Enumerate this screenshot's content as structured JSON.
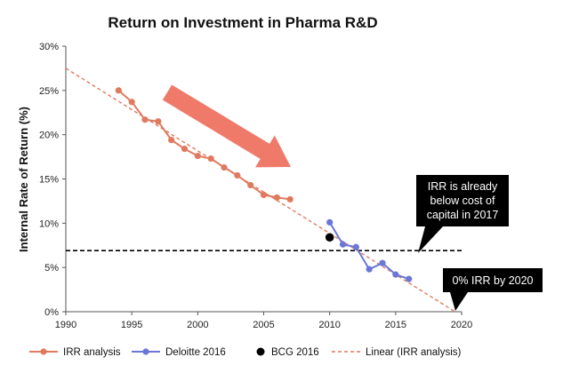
{
  "chart_data": {
    "type": "line",
    "title": "Return on Investment in Pharma R&D",
    "ylabel": "Internal Rate of Return (%)",
    "xlabel": "",
    "xlim": [
      1990,
      2020
    ],
    "ylim": [
      0,
      30
    ],
    "x_ticks": [
      1990,
      1995,
      2000,
      2005,
      2010,
      2015,
      2020
    ],
    "x_tick_labels": [
      "1990",
      "1995",
      "2000",
      "2005",
      "2010",
      "2015",
      "2020"
    ],
    "y_ticks": [
      0,
      5,
      10,
      15,
      20,
      25,
      30
    ],
    "y_tick_labels": [
      "0%",
      "5%",
      "10%",
      "15%",
      "20%",
      "25%",
      "30%"
    ],
    "series": [
      {
        "name": "IRR analysis",
        "kind": "line-marker",
        "color": "#e07a5f",
        "x": [
          1994,
          1995,
          1996,
          1997,
          1998,
          1999,
          2000,
          2001,
          2002,
          2003,
          2004,
          2005,
          2006,
          2007
        ],
        "y": [
          25.0,
          23.7,
          21.7,
          21.5,
          19.4,
          18.4,
          17.6,
          17.3,
          16.3,
          15.4,
          14.3,
          13.2,
          12.9,
          12.7
        ]
      },
      {
        "name": "Deloitte 2016",
        "kind": "line-marker",
        "color": "#6a76d8",
        "x": [
          2010,
          2011,
          2012,
          2013,
          2014,
          2015,
          2016
        ],
        "y": [
          10.1,
          7.6,
          7.3,
          4.8,
          5.5,
          4.2,
          3.7
        ]
      },
      {
        "name": "BCG 2016",
        "kind": "point",
        "color": "#000000",
        "x": [
          2010
        ],
        "y": [
          8.4
        ]
      },
      {
        "name": "Linear (IRR analysis)",
        "kind": "dashed-trendline",
        "color": "#e07a5f",
        "x": [
          1990,
          2019.5
        ],
        "y": [
          27.5,
          0
        ]
      }
    ],
    "reference_line": {
      "y": 6.9,
      "style": "dashed",
      "color": "#000000"
    },
    "annotations": [
      {
        "text_lines": [
          "IRR is already",
          "below cost of",
          "capital in 2017"
        ]
      },
      {
        "text_lines": [
          "0% IRR by 2020"
        ]
      }
    ],
    "arrow_color": "#ef6f5c",
    "grid": false,
    "legend_position": "bottom"
  }
}
